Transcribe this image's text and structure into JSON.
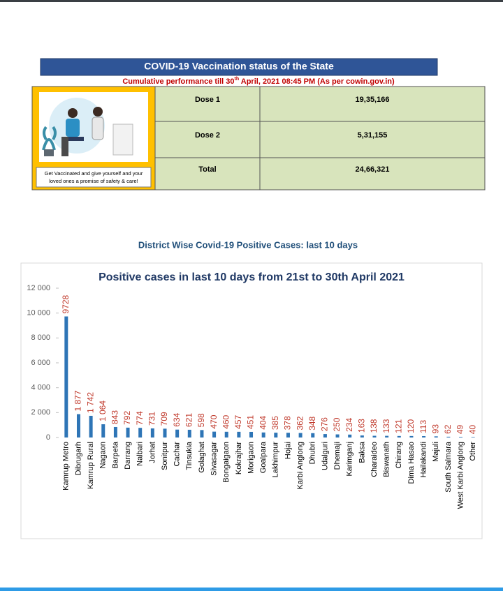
{
  "header": {
    "title": "COVID-19 Vaccination status of the State",
    "subtitle": [
      "Cumulative performance till 30",
      "th",
      " April, 2021 08:45 PM (As per cowin.gov.in)"
    ]
  },
  "caption": [
    "Get Vaccinated and give yourself and your",
    "loved ones a promise of safety & care!"
  ],
  "table": {
    "rows": [
      [
        "Dose 1",
        "19,35,166"
      ],
      [
        "Dose 2",
        "5,31,155"
      ],
      [
        "Total",
        "24,66,321"
      ]
    ]
  },
  "section_title": "District Wise Covid-19 Positive Cases: last 10 days",
  "chart_data": {
    "type": "bar",
    "title": "Positive cases in last 10 days from 21st to 30th April 2021",
    "categories": [
      "Kamrup Metro",
      "Dibrugarh",
      "Kamrup Rural",
      "Nagaon",
      "Barpeta",
      "Darrang",
      "Nalbari",
      "Jorhat",
      "Sonitpur",
      "Cachar",
      "Tinsukia",
      "Golaghat",
      "Sivasagar",
      "Bongaigaon",
      "Kokrajhar",
      "Morigaon",
      "Goalpara",
      "Lakhimpur",
      "Hojai",
      "Karbi Anglong",
      "Dhubri",
      "Udalguri",
      "Dhemaji",
      "Karimganj",
      "Baksa",
      "Charaideo",
      "Biswanath",
      "Chirang",
      "Dima Hasao",
      "Hailakandi",
      "Majuli",
      "South Salmara",
      "West Karbi Anglong",
      "Other"
    ],
    "values": [
      9728,
      1877,
      1742,
      1064,
      843,
      792,
      774,
      731,
      709,
      634,
      621,
      598,
      470,
      460,
      457,
      451,
      404,
      385,
      378,
      362,
      348,
      276,
      250,
      234,
      163,
      138,
      133,
      121,
      120,
      113,
      93,
      62,
      49,
      40
    ],
    "value_labels": [
      "9728",
      "1 877",
      "1 742",
      "1 064",
      "843",
      "792",
      "774",
      "731",
      "709",
      "634",
      "621",
      "598",
      "470",
      "460",
      "457",
      "451",
      "404",
      "385",
      "378",
      "362",
      "348",
      "276",
      "250",
      "234",
      "163",
      "138",
      "133",
      "121",
      "120",
      "113",
      "93",
      "62",
      "49",
      "40"
    ],
    "color": "#2e75b6",
    "label_color": "#c0392b",
    "ylim": [
      0,
      12000
    ],
    "yticks": [
      0,
      {
        "value": 2000,
        "label": "2 000"
      },
      {
        "value": 4000,
        "label": "4 000"
      },
      {
        "value": 6000,
        "label": "6 000"
      },
      {
        "value": 8000,
        "label": "8 000"
      },
      {
        "value": 10000,
        "label": "10 000"
      },
      {
        "value": 12000,
        "label": "12 000"
      }
    ],
    "grid": false
  }
}
